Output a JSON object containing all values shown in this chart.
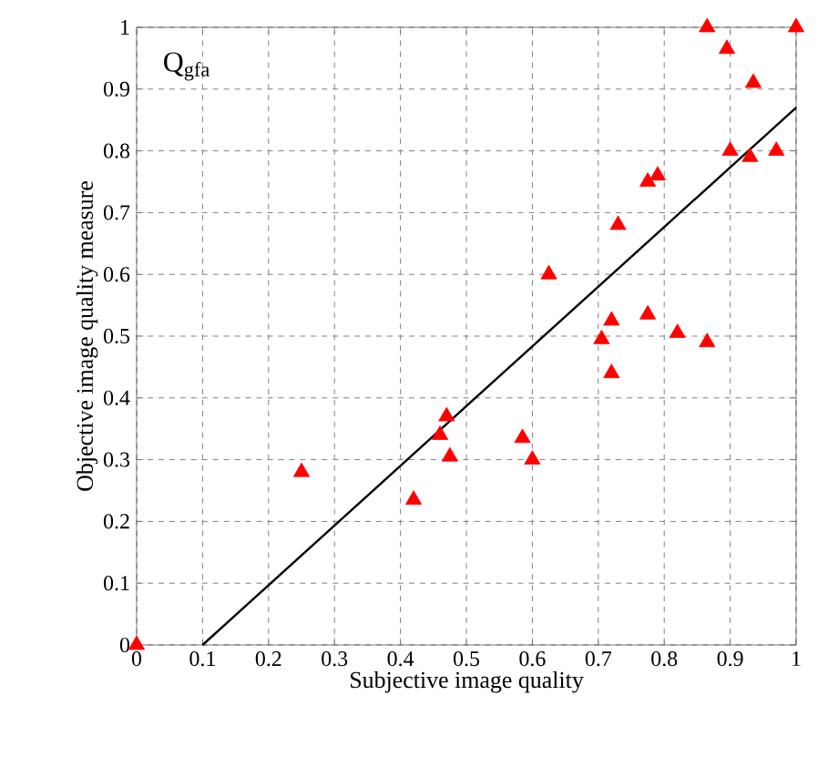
{
  "chart_data": {
    "type": "scatter",
    "xlabel": "Subjective image quality",
    "ylabel": "Objective image quality measure",
    "annotations": [
      "Q$_{gfa}$"
    ],
    "xlim": [
      0,
      1
    ],
    "ylim": [
      0,
      1
    ],
    "xticks": [
      0,
      0.1,
      0.2,
      0.3,
      0.4,
      0.5,
      0.6,
      0.7,
      0.8,
      0.9,
      1
    ],
    "yticks": [
      0,
      0.1,
      0.2,
      0.3,
      0.4,
      0.5,
      0.6,
      0.7,
      0.8,
      0.9,
      1
    ],
    "grid": true,
    "series": [
      {
        "color": "#ff0000",
        "marker": "triangle",
        "x": [
          0,
          0.25,
          0.42,
          0.46,
          0.47,
          0.475,
          0.585,
          0.6,
          0.625,
          0.705,
          0.72,
          0.72,
          0.73,
          0.775,
          0.775,
          0.79,
          0.82,
          0.865,
          0.865,
          0.895,
          0.9,
          0.93,
          0.935,
          0.97,
          1.0
        ],
        "values": [
          0,
          0.28,
          0.235,
          0.34,
          0.37,
          0.305,
          0.335,
          0.3,
          0.6,
          0.495,
          0.525,
          0.44,
          0.68,
          0.535,
          0.75,
          0.76,
          0.505,
          0.49,
          1.0,
          0.965,
          0.8,
          0.79,
          0.91,
          0.8,
          1.0
        ]
      },
      {
        "type": "line",
        "color": "#000000",
        "marker": "none",
        "x": [
          0.1,
          1
        ],
        "values": [
          0,
          0.87
        ]
      }
    ]
  }
}
